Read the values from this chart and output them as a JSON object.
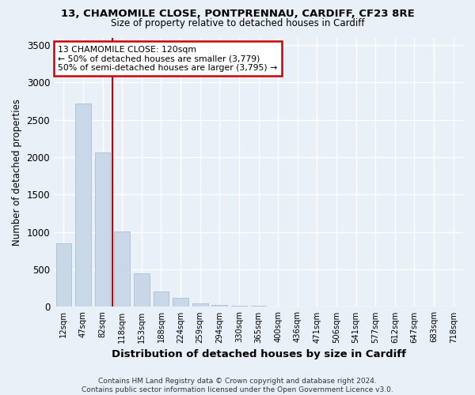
{
  "title": "13, CHAMOMILE CLOSE, PONTPRENNAU, CARDIFF, CF23 8RE",
  "subtitle": "Size of property relative to detached houses in Cardiff",
  "xlabel": "Distribution of detached houses by size in Cardiff",
  "ylabel": "Number of detached properties",
  "bar_color": "#c8d8e8",
  "bar_edgecolor": "#a0b8cc",
  "background_color": "#eaf0f8",
  "grid_color": "#ffffff",
  "categories": [
    "12sqm",
    "47sqm",
    "82sqm",
    "118sqm",
    "153sqm",
    "188sqm",
    "224sqm",
    "259sqm",
    "294sqm",
    "330sqm",
    "365sqm",
    "400sqm",
    "436sqm",
    "471sqm",
    "506sqm",
    "541sqm",
    "577sqm",
    "612sqm",
    "647sqm",
    "683sqm",
    "718sqm"
  ],
  "values": [
    850,
    2720,
    2060,
    1010,
    450,
    200,
    120,
    50,
    30,
    10,
    10,
    5,
    5,
    5,
    5,
    5,
    2,
    2,
    2,
    2,
    0
  ],
  "ylim": [
    0,
    3600
  ],
  "yticks": [
    0,
    500,
    1000,
    1500,
    2000,
    2500,
    3000,
    3500
  ],
  "property_line_index": 3,
  "annotation_text": "13 CHAMOMILE CLOSE: 120sqm\n← 50% of detached houses are smaller (3,779)\n50% of semi-detached houses are larger (3,795) →",
  "annotation_box_color": "#ffffff",
  "annotation_box_edge": "#cc0000",
  "line_color": "#cc0000",
  "footer": "Contains HM Land Registry data © Crown copyright and database right 2024.\nContains public sector information licensed under the Open Government Licence v3.0."
}
